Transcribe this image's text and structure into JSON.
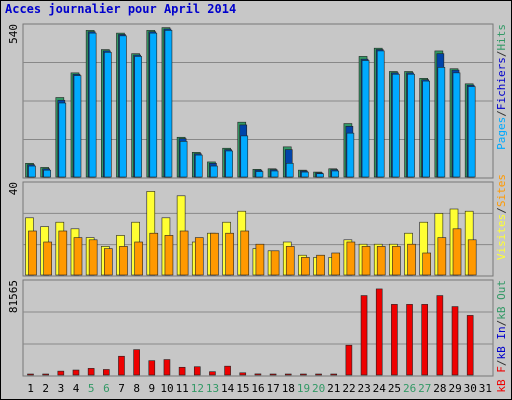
{
  "title": "Acces journalier pour April 2014",
  "colors": {
    "pages": "#00aaff",
    "hits": "#339966",
    "visits": "#ffff33",
    "sites": "#ff9900",
    "kb": "#ee0000",
    "weekend_label": "#339966",
    "background": "#c7c7c7"
  },
  "chart_data": [
    {
      "type": "bar",
      "panel": "top",
      "categories": [
        "1",
        "2",
        "3",
        "4",
        "5",
        "6",
        "7",
        "8",
        "9",
        "10",
        "11",
        "12",
        "13",
        "14",
        "15",
        "16",
        "17",
        "18",
        "19",
        "20",
        "21",
        "22",
        "23",
        "24",
        "25",
        "26",
        "27",
        "28",
        "29",
        "30",
        "31"
      ],
      "weekend_days": [
        "5",
        "6",
        "12",
        "13",
        "19",
        "20",
        "26",
        "27"
      ],
      "y_max_label": "540",
      "legend": [
        {
          "text": "Pages",
          "color": "#00aaff"
        },
        {
          "text": "/",
          "color": "#333333"
        },
        {
          "text": "Fichiers",
          "color": "#0000cc"
        },
        {
          "text": "/",
          "color": "#333333"
        },
        {
          "text": "Hits",
          "color": "#339966"
        }
      ],
      "ylim": [
        0,
        540
      ],
      "series": [
        {
          "name": "Hits",
          "values": [
            50,
            35,
            290,
            380,
            535,
            465,
            525,
            450,
            535,
            545,
            145,
            90,
            55,
            105,
            200,
            28,
            30,
            110,
            25,
            18,
            30,
            195,
            440,
            470,
            385,
            385,
            360,
            460,
            395,
            340,
            0
          ]
        },
        {
          "name": "Fichiers",
          "values": [
            45,
            30,
            280,
            375,
            530,
            460,
            520,
            445,
            530,
            540,
            140,
            85,
            50,
            100,
            190,
            25,
            27,
            100,
            22,
            15,
            27,
            185,
            430,
            465,
            380,
            380,
            355,
            450,
            390,
            335,
            0
          ]
        },
        {
          "name": "Pages",
          "values": [
            40,
            25,
            270,
            370,
            525,
            455,
            515,
            440,
            525,
            535,
            130,
            80,
            40,
            95,
            150,
            20,
            22,
            50,
            18,
            12,
            22,
            160,
            425,
            460,
            375,
            375,
            350,
            400,
            380,
            330,
            0
          ]
        }
      ]
    },
    {
      "type": "bar",
      "panel": "middle",
      "categories": [
        "1",
        "2",
        "3",
        "4",
        "5",
        "6",
        "7",
        "8",
        "9",
        "10",
        "11",
        "12",
        "13",
        "14",
        "15",
        "16",
        "17",
        "18",
        "19",
        "20",
        "21",
        "22",
        "23",
        "24",
        "25",
        "26",
        "27",
        "28",
        "29",
        "30",
        "31"
      ],
      "y_max_label": "40",
      "legend": [
        {
          "text": "Visites",
          "color": "#ffff33"
        },
        {
          "text": "/",
          "color": "#333333"
        },
        {
          "text": "Sites",
          "color": "#ff9900"
        }
      ],
      "ylim": [
        0,
        40
      ],
      "series": [
        {
          "name": "Visites",
          "values": [
            26,
            22,
            24,
            21,
            17,
            13,
            18,
            24,
            38,
            26,
            36,
            15,
            19,
            24,
            29,
            12,
            11,
            15,
            9,
            8,
            8,
            16,
            14,
            14,
            14,
            19,
            24,
            28,
            30,
            29,
            0
          ]
        },
        {
          "name": "Sites",
          "values": [
            20,
            15,
            20,
            17,
            16,
            12,
            13,
            15,
            19,
            18,
            20,
            17,
            19,
            19,
            20,
            14,
            11,
            13,
            8,
            9,
            10,
            15,
            13,
            13,
            13,
            14,
            10,
            17,
            21,
            16,
            0
          ]
        }
      ]
    },
    {
      "type": "bar",
      "panel": "bottom",
      "categories": [
        "1",
        "2",
        "3",
        "4",
        "5",
        "6",
        "7",
        "8",
        "9",
        "10",
        "11",
        "12",
        "13",
        "14",
        "15",
        "16",
        "17",
        "18",
        "19",
        "20",
        "21",
        "22",
        "23",
        "24",
        "25",
        "26",
        "27",
        "28",
        "29",
        "30",
        "31"
      ],
      "y_max_label": "81565",
      "legend": [
        {
          "text": "kB F",
          "color": "#ee0000"
        },
        {
          "text": "/",
          "color": "#333333"
        },
        {
          "text": "kB In",
          "color": "#0000cc"
        },
        {
          "text": "/",
          "color": "#333333"
        },
        {
          "text": "kB Out",
          "color": "#339966"
        }
      ],
      "ylim": [
        0,
        81565
      ],
      "series": [
        {
          "name": "kB F",
          "values": [
            800,
            800,
            3500,
            4500,
            6000,
            5000,
            17000,
            23000,
            13000,
            14000,
            7000,
            7500,
            3000,
            8000,
            2000,
            1000,
            700,
            800,
            400,
            300,
            500,
            27000,
            72000,
            78000,
            64000,
            64000,
            64000,
            72000,
            62000,
            54000,
            0
          ]
        }
      ]
    }
  ]
}
